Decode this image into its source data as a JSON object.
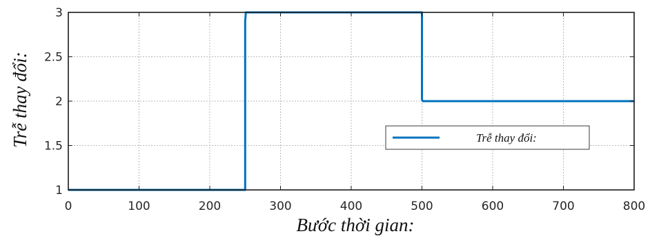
{
  "chart_data": {
    "type": "line",
    "title": "",
    "xlabel": "Bước thời gian:",
    "ylabel": "Trễ thay đổi:",
    "xlim": [
      0,
      800
    ],
    "ylim": [
      1,
      3
    ],
    "xticks": [
      0,
      100,
      200,
      300,
      400,
      500,
      600,
      700,
      800
    ],
    "xtick_labels": [
      "0",
      "100",
      "200",
      "300",
      "400",
      "500",
      "600",
      "700",
      "800"
    ],
    "yticks": [
      1,
      1.5,
      2,
      2.5,
      3
    ],
    "ytick_labels": [
      "1",
      "1.5",
      "2",
      "2.5",
      "3"
    ],
    "grid": true,
    "legend_position": "center-right",
    "series": [
      {
        "name": "Trễ thay đổi:",
        "color": "#0072BD",
        "x": [
          0,
          250,
          250,
          251,
          500,
          500,
          501,
          800
        ],
        "y": [
          1,
          1,
          2.9,
          3,
          3,
          2.02,
          2,
          2
        ]
      }
    ]
  }
}
